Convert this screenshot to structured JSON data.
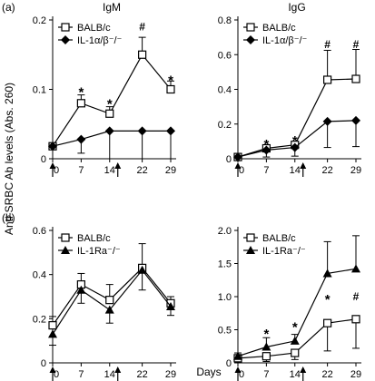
{
  "figure": {
    "ylabel": "Anti-SRBC Ab levels (Abs. 260)",
    "xlabel": "Days"
  },
  "chart_data": [
    {
      "id": "a-igm",
      "type": "line",
      "row_label": "(a)",
      "title": "IgM",
      "legend_position": "top-left",
      "x": [
        0,
        7,
        14,
        22,
        29
      ],
      "xticks": [
        "0",
        "7",
        "14",
        "22",
        "29"
      ],
      "ylim": [
        0,
        0.2
      ],
      "yticks": [
        "0",
        "0.1",
        "0.2"
      ],
      "arrows_at": [
        0,
        16
      ],
      "series": [
        {
          "name": "BALB/c",
          "marker": "open-square",
          "values": [
            0.018,
            0.08,
            0.065,
            0.15,
            0.1
          ],
          "err_up": [
            0,
            0.012,
            0.01,
            0.025,
            0.012
          ],
          "err_down": [
            0,
            0,
            0,
            0,
            0
          ]
        },
        {
          "name": "IL-1α/β⁻/⁻",
          "marker": "filled-diamond",
          "values": [
            0.018,
            0.028,
            0.04,
            0.04,
            0.04
          ],
          "err_up": [
            0,
            0,
            0,
            0,
            0
          ],
          "err_down": [
            0,
            0.02,
            0.04,
            0.04,
            0.04
          ]
        }
      ],
      "annotations": [
        {
          "x": 7,
          "y": 0.1,
          "text": "*"
        },
        {
          "x": 14,
          "y": 0.083,
          "text": "*"
        },
        {
          "x": 22,
          "y": 0.19,
          "text": "#"
        },
        {
          "x": 29,
          "y": 0.117,
          "text": "*"
        }
      ]
    },
    {
      "id": "a-igg",
      "type": "line",
      "row_label": "",
      "title": "IgG",
      "legend_position": "top-left",
      "x": [
        0,
        7,
        14,
        22,
        29
      ],
      "xticks": [
        "0",
        "7",
        "14",
        "22",
        "29"
      ],
      "ylim": [
        0,
        0.8
      ],
      "yticks": [
        "0",
        "0.2",
        "0.4",
        "0.6",
        "0.8"
      ],
      "arrows_at": [
        0,
        16
      ],
      "series": [
        {
          "name": "BALB/c",
          "marker": "open-square",
          "values": [
            0.01,
            0.06,
            0.08,
            0.455,
            0.46
          ],
          "err_up": [
            0,
            0.01,
            0.01,
            0.17,
            0.17
          ],
          "err_down": [
            0,
            0,
            0,
            0,
            0
          ]
        },
        {
          "name": "IL-1α/β⁻/⁻",
          "marker": "filled-diamond",
          "values": [
            0.01,
            0.05,
            0.065,
            0.215,
            0.22
          ],
          "err_up": [
            0,
            0,
            0,
            0,
            0
          ],
          "err_down": [
            0,
            0.04,
            0.05,
            0.15,
            0.15
          ]
        }
      ],
      "annotations": [
        {
          "x": 7,
          "y": 0.1,
          "text": "*"
        },
        {
          "x": 14,
          "y": 0.12,
          "text": "*"
        },
        {
          "x": 22,
          "y": 0.66,
          "text": "#"
        },
        {
          "x": 29,
          "y": 0.66,
          "text": "#"
        }
      ]
    },
    {
      "id": "b-igm",
      "type": "line",
      "row_label": "(b)",
      "title": "",
      "legend_position": "top-left",
      "x": [
        0,
        7,
        14,
        22,
        29
      ],
      "xticks": [
        "0",
        "7",
        "14",
        "22",
        "29"
      ],
      "ylim": [
        0,
        0.6
      ],
      "yticks": [
        "0",
        "0.2",
        "0.4",
        "0.6"
      ],
      "arrows_at": [
        0,
        16
      ],
      "series": [
        {
          "name": "BALB/c",
          "marker": "open-square",
          "values": [
            0.17,
            0.355,
            0.285,
            0.43,
            0.27
          ],
          "err_up": [
            0.04,
            0.05,
            0.07,
            0.11,
            0.03
          ],
          "err_down": [
            0,
            0,
            0,
            0,
            0
          ]
        },
        {
          "name": "IL-1Ra⁻/⁻",
          "marker": "filled-triangle",
          "values": [
            0.13,
            0.33,
            0.24,
            0.42,
            0.255
          ],
          "err_up": [
            0,
            0,
            0,
            0,
            0
          ],
          "err_down": [
            0.05,
            0.06,
            0.06,
            0.09,
            0.04
          ]
        }
      ],
      "annotations": []
    },
    {
      "id": "b-igg",
      "type": "line",
      "row_label": "",
      "title": "",
      "legend_position": "top-left",
      "x": [
        0,
        7,
        14,
        22,
        29
      ],
      "xticks": [
        "0",
        "7",
        "14",
        "22",
        "29"
      ],
      "ylim": [
        0,
        2.0
      ],
      "yticks": [
        "0",
        "0.5",
        "1.0",
        "1.5",
        "2.0"
      ],
      "arrows_at": [
        0,
        16
      ],
      "series": [
        {
          "name": "BALB/c",
          "marker": "open-square",
          "values": [
            0.07,
            0.1,
            0.15,
            0.6,
            0.66
          ],
          "err_up": [
            0,
            0,
            0,
            0,
            0
          ],
          "err_down": [
            0.04,
            0.08,
            0.1,
            0.42,
            0.44
          ]
        },
        {
          "name": "IL-1Ra⁻/⁻",
          "marker": "filled-triangle",
          "values": [
            0.1,
            0.24,
            0.33,
            1.35,
            1.42
          ],
          "err_up": [
            0.05,
            0.14,
            0.1,
            0.48,
            0.5
          ],
          "err_down": [
            0,
            0,
            0,
            0,
            0
          ]
        }
      ],
      "annotations": [
        {
          "x": 7,
          "y": 0.48,
          "text": "*"
        },
        {
          "x": 14,
          "y": 0.58,
          "text": "*"
        },
        {
          "x": 22,
          "y": 1.0,
          "text": "*"
        },
        {
          "x": 29,
          "y": 1.0,
          "text": "#"
        }
      ]
    }
  ]
}
